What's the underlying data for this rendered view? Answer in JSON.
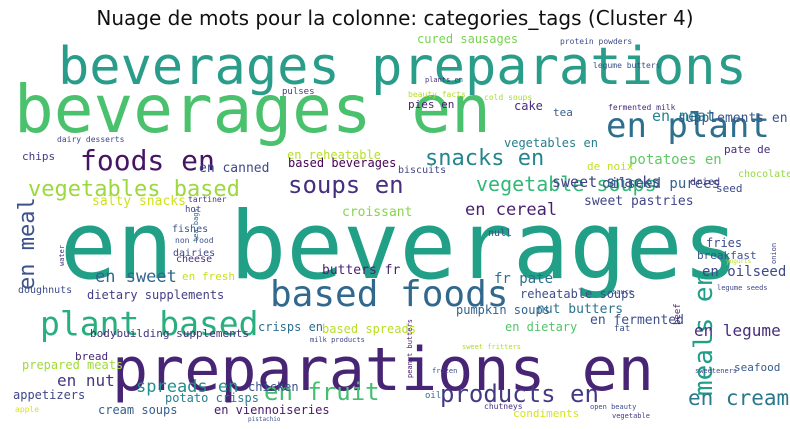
{
  "title": "Nuage de mots pour la colonne: categories_tags (Cluster 4)",
  "words": [
    {
      "text": "en beverages",
      "color": "#21a087"
    },
    {
      "text": "preparations en",
      "color": "#482475"
    },
    {
      "text": "beverages preparations",
      "color": "#2a9d8a"
    },
    {
      "text": "beverages en",
      "color": "#4ac16d"
    },
    {
      "text": "based foods",
      "color": "#31688e"
    },
    {
      "text": "plant based",
      "color": "#29af7f"
    },
    {
      "text": "en plant",
      "color": "#2e6f8e"
    },
    {
      "text": "foods en",
      "color": "#471365"
    },
    {
      "text": "soups en",
      "color": "#472f7d"
    },
    {
      "text": "snacks en",
      "color": "#25858e"
    },
    {
      "text": "vegetables based",
      "color": "#9bd93c"
    },
    {
      "text": "vegetable soups",
      "color": "#35b779"
    },
    {
      "text": "meals en",
      "color": "#1f9e89"
    },
    {
      "text": "en meal",
      "color": "#3b528b"
    },
    {
      "text": "en fruit",
      "color": "#44bf70"
    },
    {
      "text": "products en",
      "color": "#443a83"
    },
    {
      "text": "en cream",
      "color": "#2a788e"
    },
    {
      "text": "en canned",
      "color": "#3e4a89"
    },
    {
      "text": "en meat",
      "color": "#26828e"
    },
    {
      "text": "en cereal",
      "color": "#481f70"
    },
    {
      "text": "en sweet",
      "color": "#32658e"
    },
    {
      "text": "sweet snacks",
      "color": "#414487"
    },
    {
      "text": "spreads en",
      "color": "#218f8d"
    },
    {
      "text": "en nut",
      "color": "#453781"
    },
    {
      "text": "en legume",
      "color": "#472d7b"
    },
    {
      "text": "en oilseed",
      "color": "#3f4889"
    },
    {
      "text": "cured sausages",
      "color": "#7ad151"
    },
    {
      "text": "supplements en",
      "color": "#3a548c"
    },
    {
      "text": "vegetables en",
      "color": "#287d8e"
    },
    {
      "text": "potatoes en",
      "color": "#5ec962"
    },
    {
      "text": "oilseed purees",
      "color": "#34618d"
    },
    {
      "text": "sweet pastries",
      "color": "#404588"
    },
    {
      "text": "salty snacks",
      "color": "#d0e11c"
    },
    {
      "text": "croissant",
      "color": "#86d549"
    },
    {
      "text": "en reheatable",
      "color": "#b5de2b"
    },
    {
      "text": "based beverages",
      "color": "#440154"
    },
    {
      "text": "dietary supplements",
      "color": "#433e85"
    },
    {
      "text": "bodybuilding supplements",
      "color": "#46327e"
    },
    {
      "text": "butters fr",
      "color": "#482173"
    },
    {
      "text": "fr pate",
      "color": "#2d708e"
    },
    {
      "text": "reheatable soups",
      "color": "#3d4e8a"
    },
    {
      "text": "nut butters",
      "color": "#2c728e"
    },
    {
      "text": "pumpkin soups",
      "color": "#33638d"
    },
    {
      "text": "crisps en",
      "color": "#2e6e8e"
    },
    {
      "text": "based spreads",
      "color": "#b8de29"
    },
    {
      "text": "en fermented",
      "color": "#3c4f8a"
    },
    {
      "text": "en dietary",
      "color": "#52c569"
    },
    {
      "text": "en viennoiseries",
      "color": "#481769"
    },
    {
      "text": "cream soups",
      "color": "#355f8d"
    },
    {
      "text": "potato crisps",
      "color": "#277f8e"
    },
    {
      "text": "chicken",
      "color": "#3b518b"
    },
    {
      "text": "appetizers",
      "color": "#3f4788"
    },
    {
      "text": "prepared meats",
      "color": "#a0da39"
    },
    {
      "text": "bread",
      "color": "#482878"
    },
    {
      "text": "chips",
      "color": "#453882"
    },
    {
      "text": "en fresh",
      "color": "#c8e020"
    },
    {
      "text": "condiments",
      "color": "#d8e219"
    },
    {
      "text": "fries",
      "color": "#3e4c8a"
    },
    {
      "text": "breakfast",
      "color": "#3b528b"
    },
    {
      "text": "seafood",
      "color": "#375b8d"
    },
    {
      "text": "chocolate",
      "color": "#95d840"
    },
    {
      "text": "dried",
      "color": "#46327e"
    },
    {
      "text": "seed",
      "color": "#3e4989"
    },
    {
      "text": "pate de",
      "color": "#472a7a"
    },
    {
      "text": "de noix",
      "color": "#c2df23"
    },
    {
      "text": "cake",
      "color": "#472d7b"
    },
    {
      "text": "tea",
      "color": "#34608d"
    },
    {
      "text": "pies en",
      "color": "#481f70"
    },
    {
      "text": "biscuits",
      "color": "#414487"
    },
    {
      "text": "null",
      "color": "#3e4a89"
    },
    {
      "text": "fishes",
      "color": "#3b528b"
    },
    {
      "text": "dairies",
      "color": "#3f4788"
    },
    {
      "text": "cheese",
      "color": "#46317e"
    },
    {
      "text": "doughnuts",
      "color": "#3d4e8a"
    },
    {
      "text": "pulses",
      "color": "#453781"
    },
    {
      "text": "hot",
      "color": "#3e4989"
    },
    {
      "text": "fat",
      "color": "#3b528b"
    },
    {
      "text": "oil",
      "color": "#2c728e"
    },
    {
      "text": "beef",
      "color": "#482878"
    },
    {
      "text": "tartiner",
      "color": "#453781"
    },
    {
      "text": "non food",
      "color": "#3b528b"
    },
    {
      "text": "dairy desserts",
      "color": "#3f4788"
    },
    {
      "text": "beauty facts",
      "color": "#b5de2b"
    },
    {
      "text": "protein powders",
      "color": "#3e4a89"
    },
    {
      "text": "cold soups",
      "color": "#a5db36"
    },
    {
      "text": "fermented milk",
      "color": "#472d7b"
    },
    {
      "text": "legume butters",
      "color": "#3b528b"
    },
    {
      "text": "legume seeds",
      "color": "#3f4788"
    },
    {
      "text": "chutneys",
      "color": "#46327e"
    },
    {
      "text": "open beauty",
      "color": "#3e4c8a"
    },
    {
      "text": "vegetable",
      "color": "#443983"
    },
    {
      "text": "apple",
      "color": "#dde318"
    },
    {
      "text": "water",
      "color": "#46327e"
    },
    {
      "text": "sweet fritters",
      "color": "#addc30"
    },
    {
      "text": "milk products",
      "color": "#3f4788"
    },
    {
      "text": "peanut butters",
      "color": "#481b6d"
    },
    {
      "text": "frozen",
      "color": "#3e4989"
    },
    {
      "text": "sauce",
      "color": "#3b528b"
    },
    {
      "text": "onion",
      "color": "#3f4788"
    },
    {
      "text": "tea bags",
      "color": "#33638d"
    },
    {
      "text": "plants en",
      "color": "#46327e"
    },
    {
      "text": "pistachio",
      "color": "#3b528b"
    },
    {
      "text": "yogurts",
      "color": "#b8de29"
    },
    {
      "text": "sweeteners",
      "color": "#3f4788"
    }
  ]
}
